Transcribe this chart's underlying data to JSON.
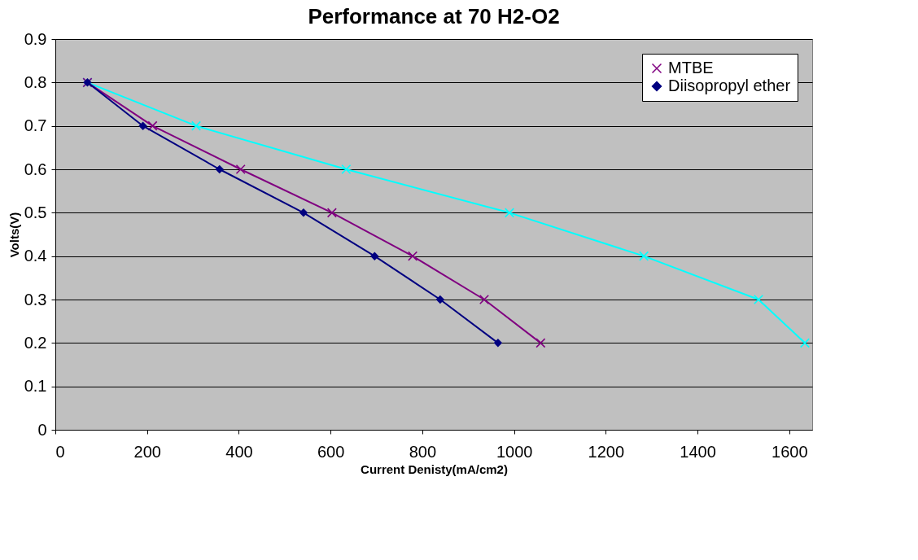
{
  "chart_data": {
    "type": "line",
    "title": "Performance at 70 H2-O2",
    "xlabel": "Current Denisty(mA/cm2)",
    "ylabel": "Volts(V)",
    "xlim": [
      0,
      1650
    ],
    "xticks": [
      0,
      200,
      400,
      600,
      800,
      1000,
      1200,
      1400,
      1600
    ],
    "ylim": [
      0,
      0.9
    ],
    "yticks": [
      0,
      0.1,
      0.2,
      0.3,
      0.4,
      0.5,
      0.6,
      0.7,
      0.8,
      0.9
    ],
    "grid": "y",
    "legend": "top right",
    "line_style": "solid",
    "series": [
      {
        "color": "#00ffff",
        "marker": "cross",
        "x": [
          70,
          307,
          634,
          990,
          1283,
          1533,
          1634
        ],
        "values": [
          0.8,
          0.7,
          0.6,
          0.5,
          0.4,
          0.3,
          0.2
        ]
      },
      {
        "name": "MTBE",
        "color": "#800080",
        "marker": "cross",
        "x": [
          70,
          212,
          404,
          603,
          779,
          935,
          1058
        ],
        "values": [
          0.8,
          0.7,
          0.6,
          0.5,
          0.4,
          0.3,
          0.2
        ]
      },
      {
        "name": "Diisopropyl ether",
        "color": "#000080",
        "marker": "diamond",
        "x": [
          70,
          191,
          358,
          541,
          696,
          839,
          965
        ],
        "values": [
          0.8,
          0.7,
          0.6,
          0.5,
          0.4,
          0.3,
          0.2
        ]
      }
    ]
  }
}
